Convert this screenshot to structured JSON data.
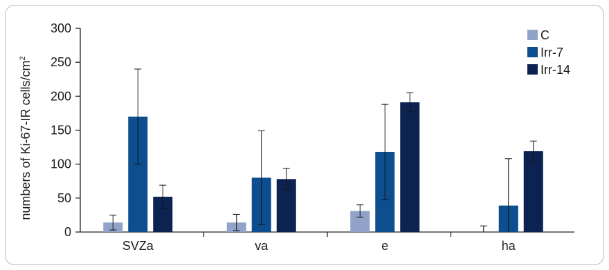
{
  "chart_data": {
    "type": "bar",
    "categories": [
      "SVZa",
      "va",
      "e",
      "ha"
    ],
    "series": [
      {
        "name": "C",
        "color": "#91a3c9",
        "values": [
          14,
          14,
          31,
          0
        ],
        "errors": [
          11,
          12,
          9,
          9
        ]
      },
      {
        "name": "Irr-7",
        "color": "#0d4e8e",
        "values": [
          170,
          80,
          118,
          39
        ],
        "errors": [
          70,
          69,
          70,
          69
        ]
      },
      {
        "name": "Irr-14",
        "color": "#0c2352",
        "values": [
          52,
          78,
          191,
          119
        ],
        "errors": [
          17,
          16,
          14,
          15
        ]
      }
    ],
    "xlabel": "",
    "ylabel": "numbers of Ki-67-IR cells/cm",
    "ylabel_superscript": "2",
    "ylim": [
      0,
      300
    ],
    "yticks": [
      0,
      50,
      100,
      150,
      200,
      250,
      300
    ],
    "grid": false,
    "legend": "top-right",
    "error_bars": true
  }
}
